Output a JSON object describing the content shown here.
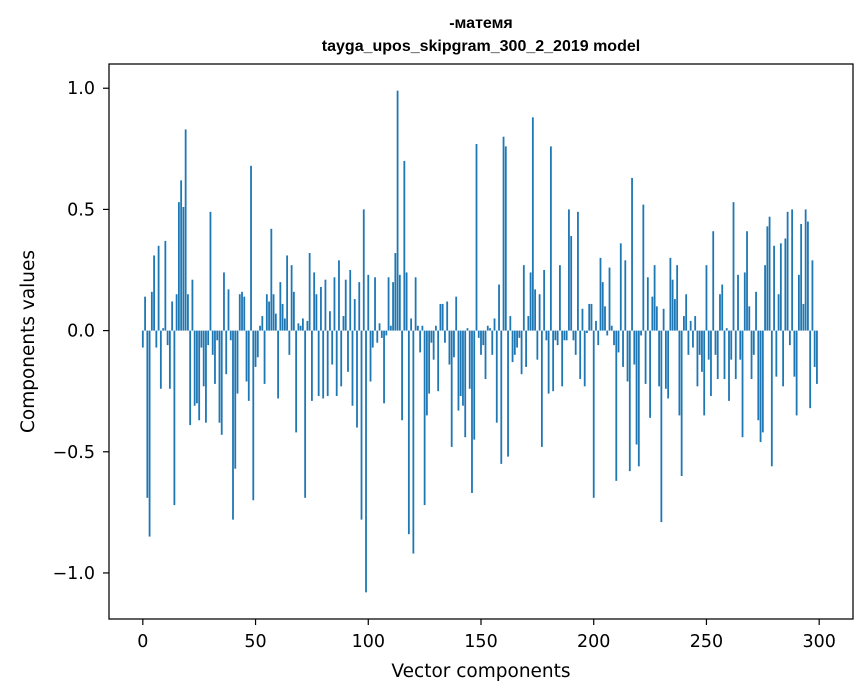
{
  "chart_data": {
    "type": "bar",
    "title_line1": "-матемя",
    "title_line2": "tayga_upos_skipgram_300_2_2019 model",
    "xlabel": "Vector components",
    "ylabel": "Components values",
    "xlim": [
      -15,
      315
    ],
    "ylim": [
      -1.19,
      1.1
    ],
    "x_ticks": [
      0,
      50,
      100,
      150,
      200,
      250,
      300
    ],
    "x_tick_labels": [
      "0",
      "50",
      "100",
      "150",
      "200",
      "250",
      "300"
    ],
    "y_ticks": [
      1.0,
      0.5,
      0.0,
      -0.5,
      -1.0
    ],
    "y_tick_labels": [
      "1.0",
      "0.5",
      "0.0",
      "−0.5",
      "−1.0"
    ],
    "bar_color": "#1f77b4",
    "values": [
      -0.07,
      0.14,
      -0.69,
      -0.85,
      0.16,
      0.31,
      -0.07,
      0.35,
      -0.24,
      0.01,
      0.37,
      -0.06,
      -0.24,
      0.12,
      -0.72,
      0.15,
      0.53,
      0.62,
      0.51,
      0.83,
      0.15,
      -0.39,
      0.21,
      -0.31,
      -0.3,
      -0.37,
      -0.07,
      -0.23,
      -0.38,
      -0.06,
      0.49,
      -0.1,
      -0.22,
      -0.04,
      -0.38,
      -0.43,
      0.24,
      -0.18,
      0.17,
      -0.04,
      -0.78,
      -0.57,
      -0.26,
      0.15,
      0.16,
      0.14,
      -0.21,
      -0.29,
      0.68,
      -0.7,
      -0.15,
      -0.11,
      0.02,
      0.06,
      -0.22,
      0.15,
      0.12,
      0.42,
      0.15,
      0.07,
      -0.28,
      0.2,
      0.11,
      0.05,
      0.31,
      -0.1,
      0.27,
      0.16,
      -0.42,
      0.03,
      0.02,
      0.05,
      -0.69,
      0.04,
      0.32,
      -0.29,
      0.24,
      0.15,
      -0.27,
      0.18,
      -0.28,
      0.21,
      -0.27,
      0.08,
      -0.14,
      0.22,
      -0.27,
      0.29,
      -0.23,
      0.06,
      0.21,
      -0.17,
      0.25,
      -0.31,
      0.13,
      -0.4,
      0.2,
      -0.78,
      0.5,
      -1.08,
      0.23,
      -0.21,
      -0.07,
      0.22,
      -0.05,
      0.03,
      -0.03,
      -0.3,
      -0.02,
      0.22,
      0.02,
      0.2,
      0.32,
      0.99,
      0.23,
      -0.37,
      0.7,
      0.24,
      -0.84,
      0.05,
      -0.92,
      0.22,
      0.02,
      -0.09,
      0.02,
      -0.72,
      -0.35,
      -0.26,
      -0.05,
      -0.12,
      0.02,
      -0.25,
      0.11,
      0.11,
      -0.05,
      0.12,
      -0.14,
      -0.48,
      -0.11,
      0.14,
      -0.33,
      -0.27,
      -0.31,
      -0.44,
      0.01,
      -0.24,
      -0.67,
      -0.45,
      0.77,
      -0.03,
      -0.1,
      -0.06,
      -0.2,
      0.02,
      0.01,
      -0.1,
      0.05,
      -0.38,
      0.19,
      -0.55,
      0.8,
      0.76,
      -0.52,
      0.06,
      -0.13,
      -0.1,
      -0.07,
      -0.03,
      -0.18,
      0.27,
      -0.15,
      0.06,
      0.24,
      0.88,
      0.17,
      -0.12,
      0.15,
      -0.48,
      0.25,
      -0.04,
      -0.26,
      0.76,
      -0.25,
      -0.04,
      -0.06,
      0.27,
      -0.23,
      -0.04,
      -0.04,
      0.5,
      0.39,
      -0.04,
      -0.1,
      0.49,
      -0.2,
      0.09,
      -0.23,
      -0.01,
      0.11,
      0.11,
      -0.69,
      0.04,
      -0.06,
      0.3,
      0.2,
      0.1,
      -0.02,
      0.26,
      0.02,
      -0.06,
      -0.62,
      -0.09,
      0.36,
      -0.15,
      0.29,
      -0.21,
      -0.58,
      0.63,
      -0.14,
      -0.47,
      -0.56,
      -0.02,
      0.52,
      -0.22,
      0.22,
      -0.36,
      0.14,
      0.27,
      0.1,
      -0.23,
      -0.79,
      0.09,
      -0.24,
      -0.28,
      0.3,
      0.21,
      0.13,
      0.27,
      -0.35,
      -0.6,
      0.06,
      0.15,
      -0.1,
      0.04,
      -0.07,
      0.06,
      -0.23,
      -0.1,
      -0.17,
      -0.35,
      0.27,
      -0.12,
      -0.27,
      0.41,
      -0.1,
      -0.2,
      0.15,
      0.19,
      -0.2,
      0.01,
      -0.29,
      -0.12,
      0.53,
      -0.2,
      0.23,
      -0.12,
      -0.44,
      0.24,
      0.41,
      0.1,
      -0.2,
      -0.1,
      0.16,
      -0.37,
      -0.46,
      -0.42,
      0.27,
      0.43,
      0.47,
      -0.56,
      0.35,
      -0.19,
      0.15,
      0.36,
      -0.23,
      0.38,
      0.49,
      -0.06,
      0.5,
      -0.19,
      -0.35,
      0.23,
      0.44,
      0.11,
      0.5,
      0.45,
      -0.32,
      0.29,
      -0.15,
      -0.22
    ]
  }
}
